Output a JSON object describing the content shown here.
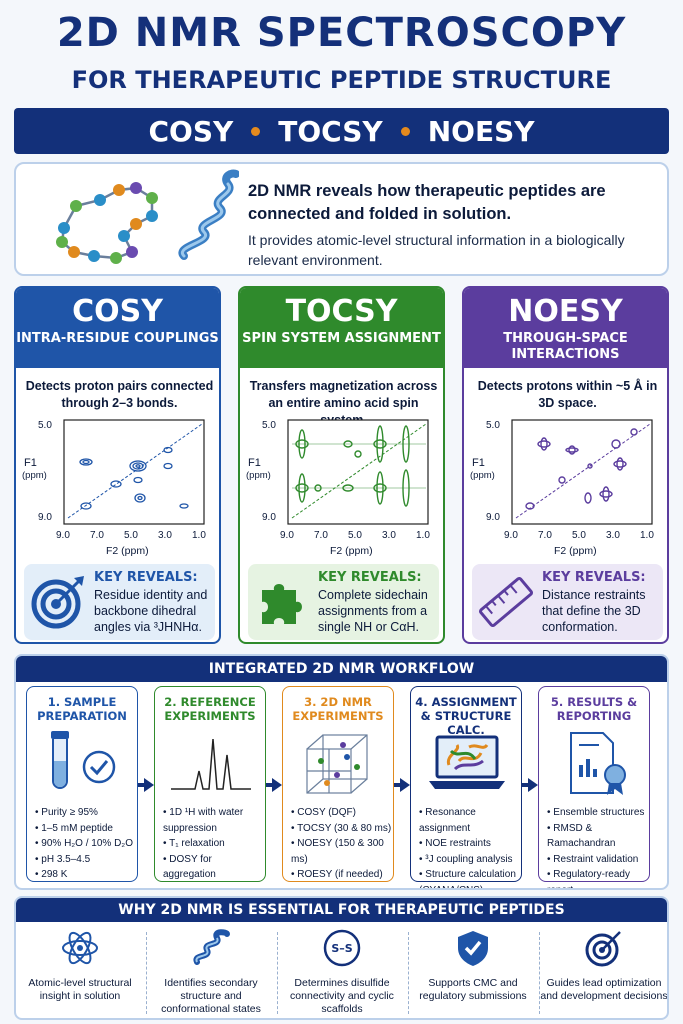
{
  "header": {
    "title": "2D NMR SPECTROSCOPY",
    "subtitle": "FOR THERAPEUTIC PEPTIDE STRUCTURE",
    "banner_items": [
      "COSY",
      "TOCSY",
      "NOESY"
    ]
  },
  "intro": {
    "lead": "2D NMR reveals how therapeutic peptides are connected and folded in solution.",
    "sub": "It provides atomic-level structural information in a biologically relevant environment."
  },
  "cards": [
    {
      "name": "COSY",
      "role": "INTRA-RESIDUE COUPLINGS",
      "desc": "Detects proton pairs connected through 2–3 bonds.",
      "color": "#1f55a8",
      "reveal_title": "KEY REVEALS:",
      "reveal_text": "Residue identity and backbone dihedral angles via ³JHNHα.",
      "icon": "target-icon"
    },
    {
      "name": "TOCSY",
      "role": "SPIN SYSTEM ASSIGNMENT",
      "desc": "Transfers magnetization across an entire amino acid spin system.",
      "color": "#2f8a2c",
      "reveal_title": "KEY REVEALS:",
      "reveal_text": "Complete sidechain assignments from a single NH or CαH.",
      "icon": "puzzle-icon"
    },
    {
      "name": "NOESY",
      "role": "THROUGH-SPACE INTERACTIONS",
      "desc": "Detects protons within ~5 Å in 3D space.",
      "color": "#5b3d9e",
      "reveal_title": "KEY REVEALS:",
      "reveal_text": "Distance restraints that define the 3D conformation.",
      "icon": "ruler-icon"
    }
  ],
  "spectrum_axes": {
    "y_label": "F1",
    "y_unit": "(ppm)",
    "y_ticks": [
      "5.0",
      "9.0"
    ],
    "x_ticks": [
      "9.0",
      "7.0",
      "5.0",
      "3.0",
      "1.0"
    ],
    "x_label": "F2 (ppm)"
  },
  "workflow": {
    "title": "INTEGRATED 2D NMR WORKFLOW",
    "steps": [
      {
        "title": "1. SAMPLE PREPARATION",
        "color": "#1f55a8",
        "items": [
          "Purity ≥ 95%",
          "1–5 mM peptide",
          "90% H₂O / 10% D₂O",
          "pH 3.5–4.5",
          "298 K"
        ],
        "icon": "sample-tube-icon"
      },
      {
        "title": "2. REFERENCE EXPERIMENTS",
        "color": "#2f8a2c",
        "items": [
          "1D ¹H with water suppression",
          "T₁ relaxation",
          "DOSY for aggregation"
        ],
        "icon": "spectrum-peaks-icon"
      },
      {
        "title": "3. 2D NMR EXPERIMENTS",
        "color": "#e08a1e",
        "items": [
          "COSY (DQF)",
          "TOCSY (30 & 80 ms)",
          "NOESY (150 & 300 ms)",
          "ROESY (if needed)"
        ],
        "icon": "cube-grid-icon"
      },
      {
        "title": "4. ASSIGNMENT & STRUCTURE CALC.",
        "color": "#13307a",
        "items": [
          "Resonance assignment",
          "NOE restraints",
          "³J coupling analysis",
          "Structure calculation (CYANA/CNS)"
        ],
        "icon": "laptop-icon"
      },
      {
        "title": "5. RESULTS & REPORTING",
        "color": "#5b3d9e",
        "items": [
          "Ensemble structures",
          "RMSD & Ramachandran",
          "Restraint validation",
          "Regulatory-ready report"
        ],
        "icon": "report-icon"
      }
    ]
  },
  "why": {
    "title": "WHY 2D NMR IS ESSENTIAL FOR THERAPEUTIC PEPTIDES",
    "items": [
      {
        "label": "Atomic-level structural insight in solution",
        "icon": "atom-icon"
      },
      {
        "label": "Identifies secondary structure and conformational states",
        "icon": "helix-icon"
      },
      {
        "label": "Determines disulfide connectivity and cyclic scaffolds",
        "icon": "disulfide-icon",
        "icon_text": "S–S"
      },
      {
        "label": "Supports CMC and regulatory submissions",
        "icon": "shield-check-icon"
      },
      {
        "label": "Guides lead optimization and development decisions",
        "icon": "target-icon"
      }
    ]
  }
}
